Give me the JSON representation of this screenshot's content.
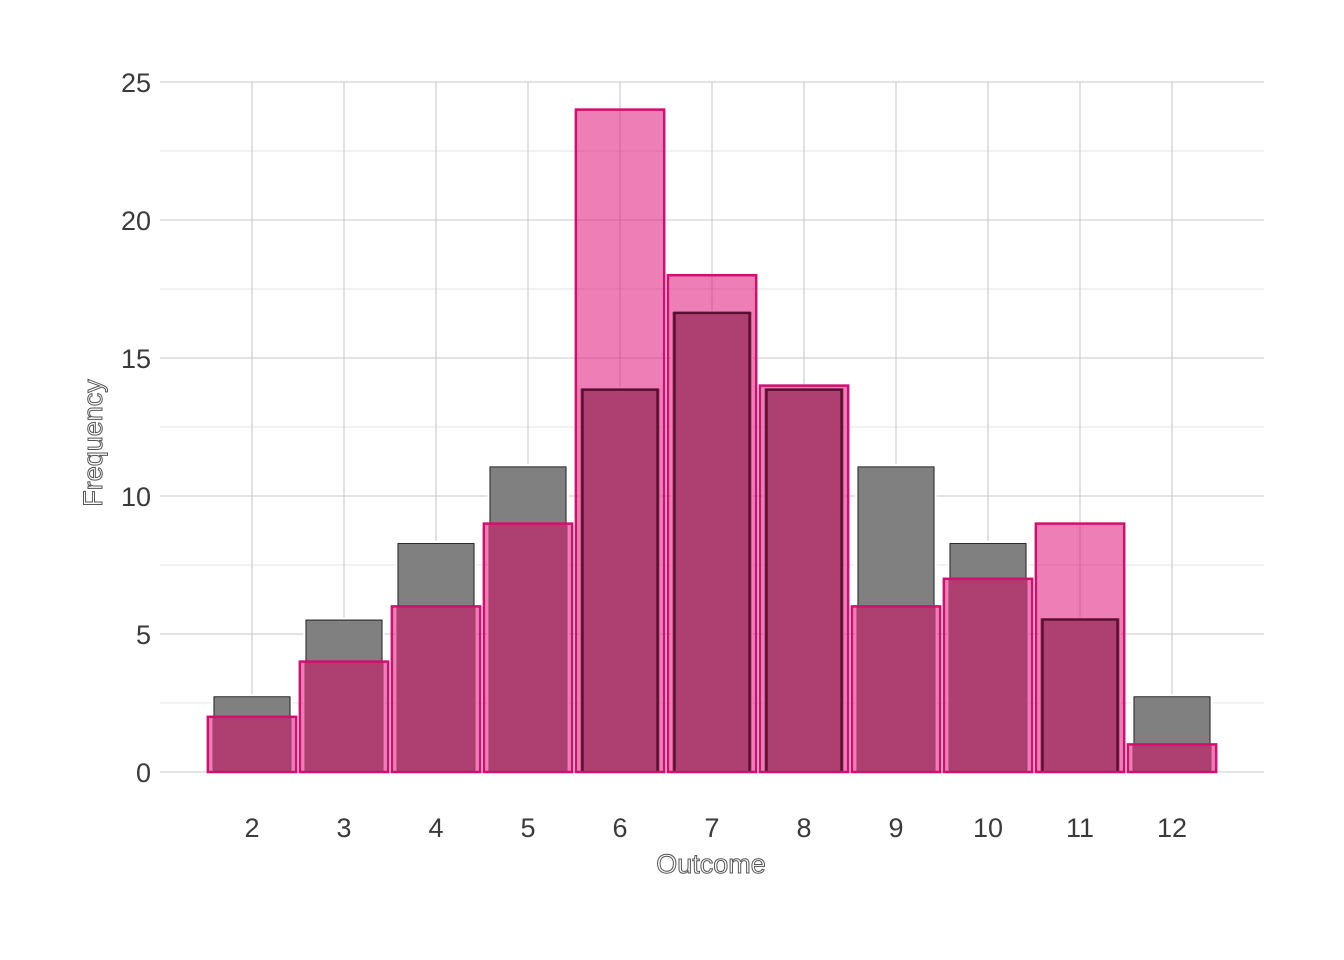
{
  "chart_data": {
    "type": "bar",
    "xlabel": "Outcome",
    "ylabel": "Frequency",
    "categories": [
      2,
      3,
      4,
      5,
      6,
      7,
      8,
      9,
      10,
      11,
      12
    ],
    "xlim": [
      1,
      13
    ],
    "ylim": [
      0,
      25
    ],
    "yticks": [
      0,
      5,
      10,
      15,
      20,
      25
    ],
    "grid": true,
    "series": [
      {
        "values": [
          2.78,
          5.56,
          8.33,
          11.11,
          13.89,
          16.67,
          13.89,
          11.11,
          8.33,
          5.56,
          2.78
        ],
        "fill": "#808080",
        "stroke": "#ffffff",
        "inner_stroke": "#000000"
      },
      {
        "values": [
          2,
          4,
          6,
          9,
          24,
          18,
          14,
          6,
          7,
          9,
          1
        ],
        "fill": "#e0147a",
        "stroke": "#d10f6e"
      }
    ],
    "overlap_fill": "#ae3f71",
    "overlap_stroke": "#5a0f30"
  }
}
